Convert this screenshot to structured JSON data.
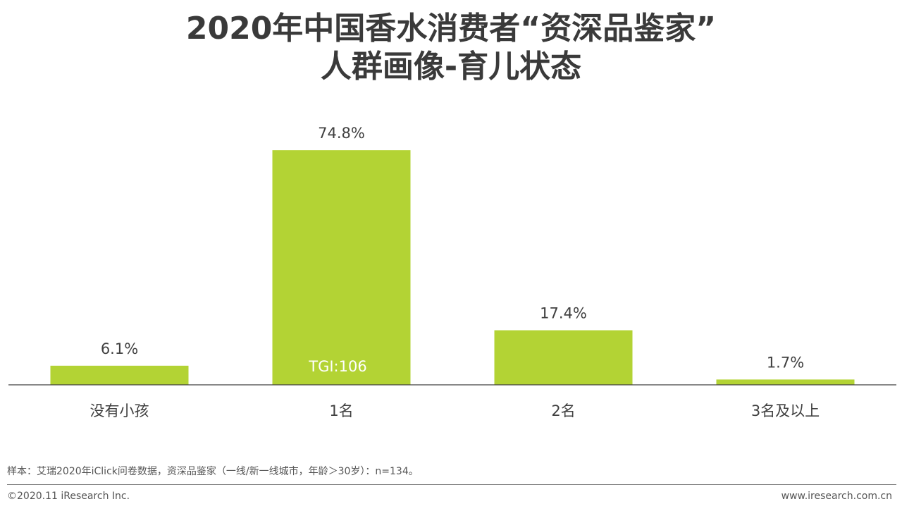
{
  "title": {
    "line1": "2020年中国香水消费者“资深品鉴家”",
    "line2": "人群画像-育儿状态"
  },
  "chart_data": {
    "type": "bar",
    "categories": [
      "没有小孩",
      "1名",
      "2名",
      "3名及以上"
    ],
    "values": [
      6.1,
      74.8,
      17.4,
      1.7
    ],
    "value_labels": [
      "6.1%",
      "74.8%",
      "17.4%",
      "1.7%"
    ],
    "annotation": {
      "category": "1名",
      "text": "TGI:106"
    },
    "title": "",
    "xlabel": "",
    "ylabel": "",
    "ylim": [
      0,
      80
    ],
    "grid": false,
    "bar_color": "#b3d334"
  },
  "footer": {
    "note": "样本：艾瑞2020年iClick问卷数据，资深品鉴家（一线/新一线城市，年龄＞30岁）：n=134。",
    "copyright": "©2020.11 iResearch Inc.",
    "website": "www.iresearch.com.cn"
  }
}
